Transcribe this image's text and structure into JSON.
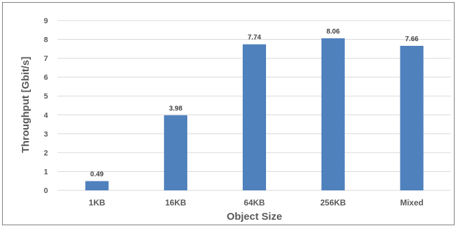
{
  "chart_data": {
    "type": "bar",
    "categories": [
      "1KB",
      "16KB",
      "64KB",
      "256KB",
      "Mixed"
    ],
    "values": [
      0.49,
      3.98,
      7.74,
      8.06,
      7.66
    ],
    "data_labels": [
      "0.49",
      "3.98",
      "7.74",
      "8.06",
      "7.66"
    ],
    "xlabel": "Object Size",
    "ylabel": "Throughput [Gbit/s]",
    "ylim": [
      0,
      9
    ],
    "yticks": [
      0,
      1,
      2,
      3,
      4,
      5,
      6,
      7,
      8,
      9
    ],
    "grid": true,
    "bar_color": "#4f81bd",
    "grid_color": "#d9d9d9"
  }
}
